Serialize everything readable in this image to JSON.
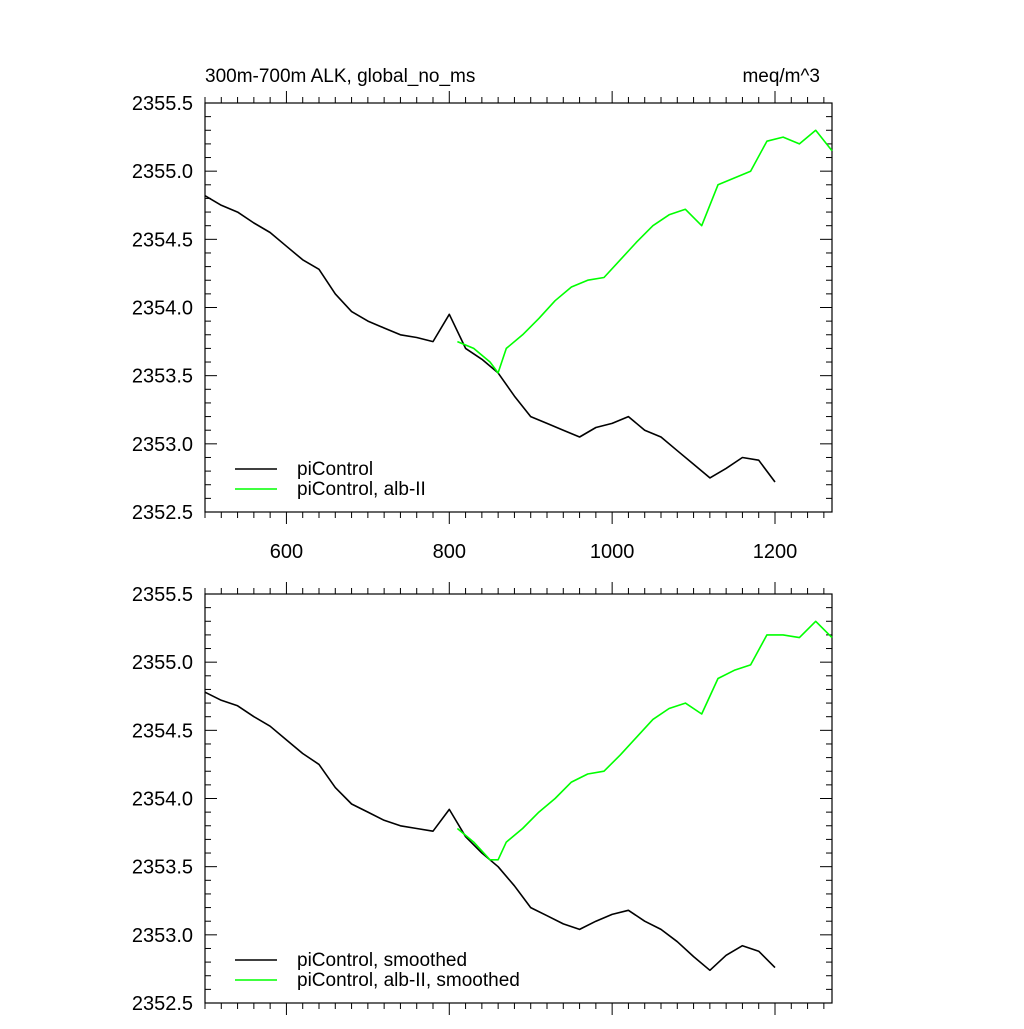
{
  "header": {
    "left_title": "300m-700m ALK, global_no_ms",
    "right_title": "meq/m^3"
  },
  "chart_data": [
    {
      "type": "line",
      "panel": "top",
      "xlim": [
        500,
        1270
      ],
      "ylim": [
        2352.5,
        2355.5
      ],
      "x_ticks": [
        600,
        800,
        1000,
        1200
      ],
      "x_tick_labels": [
        "600",
        "800",
        "1000",
        "1200"
      ],
      "y_ticks": [
        2352.5,
        2353.0,
        2353.5,
        2354.0,
        2354.5,
        2355.0,
        2355.5
      ],
      "y_tick_labels": [
        "2352.5",
        "2353.0",
        "2353.5",
        "2354.0",
        "2354.5",
        "2355.0",
        "2355.5"
      ],
      "legend_position": "bottom-left",
      "grid": false,
      "series": [
        {
          "name": "piControl",
          "color": "#000000",
          "x": [
            500,
            520,
            540,
            560,
            580,
            600,
            620,
            640,
            660,
            680,
            700,
            720,
            740,
            760,
            780,
            800,
            820,
            840,
            860,
            880,
            900,
            920,
            940,
            960,
            980,
            1000,
            1020,
            1040,
            1060,
            1080,
            1100,
            1120,
            1140,
            1160,
            1180,
            1200
          ],
          "y": [
            2354.82,
            2354.75,
            2354.7,
            2354.62,
            2354.55,
            2354.45,
            2354.35,
            2354.28,
            2354.1,
            2353.97,
            2353.9,
            2353.85,
            2353.8,
            2353.78,
            2353.75,
            2353.95,
            2353.7,
            2353.62,
            2353.52,
            2353.35,
            2353.2,
            2353.15,
            2353.1,
            2353.05,
            2353.12,
            2353.15,
            2353.2,
            2353.1,
            2353.05,
            2352.95,
            2352.85,
            2352.75,
            2352.82,
            2352.9,
            2352.88,
            2352.72
          ]
        },
        {
          "name": "piControl, alb-II",
          "color": "#00ff00",
          "x": [
            810,
            830,
            850,
            860,
            870,
            890,
            910,
            930,
            950,
            970,
            990,
            1010,
            1030,
            1050,
            1070,
            1090,
            1110,
            1130,
            1150,
            1170,
            1190,
            1210,
            1230,
            1250,
            1270
          ],
          "y": [
            2353.75,
            2353.7,
            2353.6,
            2353.52,
            2353.7,
            2353.8,
            2353.92,
            2354.05,
            2354.15,
            2354.2,
            2354.22,
            2354.35,
            2354.48,
            2354.6,
            2354.68,
            2354.72,
            2354.6,
            2354.9,
            2354.95,
            2355.0,
            2355.22,
            2355.25,
            2355.2,
            2355.3,
            2355.15
          ]
        }
      ]
    },
    {
      "type": "line",
      "panel": "bottom",
      "xlim": [
        500,
        1270
      ],
      "ylim": [
        2352.5,
        2355.5
      ],
      "x_ticks": [
        600,
        800,
        1000,
        1200
      ],
      "y_ticks": [
        2352.5,
        2353.0,
        2353.5,
        2354.0,
        2354.5,
        2355.0,
        2355.5
      ],
      "y_tick_labels": [
        "2352.5",
        "2353.0",
        "2353.5",
        "2354.0",
        "2354.5",
        "2355.0",
        "2355.5"
      ],
      "legend_position": "bottom-left",
      "grid": false,
      "series": [
        {
          "name": "piControl, smoothed",
          "color": "#000000",
          "x": [
            500,
            520,
            540,
            560,
            580,
            600,
            620,
            640,
            660,
            680,
            700,
            720,
            740,
            760,
            780,
            800,
            820,
            840,
            860,
            880,
            900,
            920,
            940,
            960,
            980,
            1000,
            1020,
            1040,
            1060,
            1080,
            1100,
            1120,
            1140,
            1160,
            1180,
            1200
          ],
          "y": [
            2354.78,
            2354.72,
            2354.68,
            2354.6,
            2354.53,
            2354.43,
            2354.33,
            2354.25,
            2354.08,
            2353.96,
            2353.9,
            2353.84,
            2353.8,
            2353.78,
            2353.76,
            2353.92,
            2353.72,
            2353.6,
            2353.5,
            2353.36,
            2353.2,
            2353.14,
            2353.08,
            2353.04,
            2353.1,
            2353.15,
            2353.18,
            2353.1,
            2353.04,
            2352.95,
            2352.84,
            2352.74,
            2352.85,
            2352.92,
            2352.88,
            2352.76
          ]
        },
        {
          "name": "piControl, alb-II, smoothed",
          "color": "#00ff00",
          "x": [
            810,
            830,
            850,
            860,
            870,
            890,
            910,
            930,
            950,
            970,
            990,
            1010,
            1030,
            1050,
            1070,
            1090,
            1110,
            1130,
            1150,
            1170,
            1190,
            1210,
            1230,
            1250,
            1270
          ],
          "y": [
            2353.78,
            2353.68,
            2353.55,
            2353.55,
            2353.68,
            2353.78,
            2353.9,
            2354.0,
            2354.12,
            2354.18,
            2354.2,
            2354.32,
            2354.45,
            2354.58,
            2354.66,
            2354.7,
            2354.62,
            2354.88,
            2354.94,
            2354.98,
            2355.2,
            2355.2,
            2355.18,
            2355.3,
            2355.18
          ]
        }
      ]
    }
  ]
}
